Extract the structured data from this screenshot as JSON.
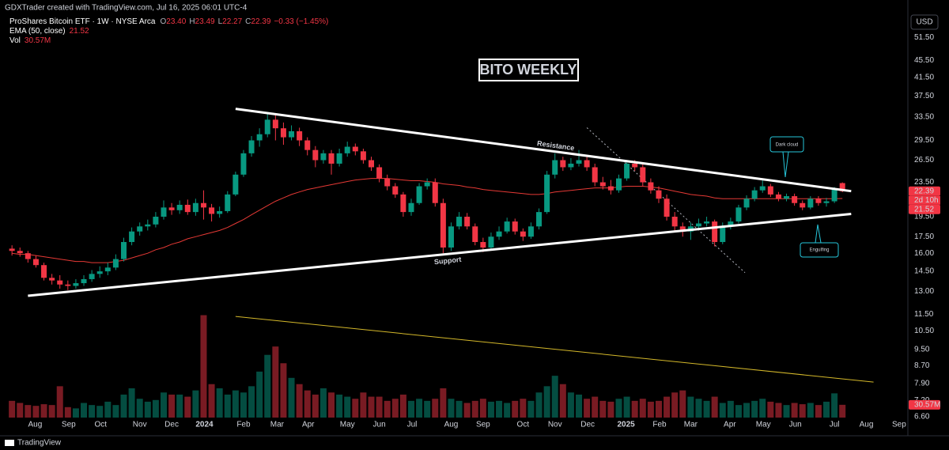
{
  "header": {
    "credit": "GDXTrader created with TradingView.com, Jul 16, 2025 06:01 UTC-4",
    "symbol": "ProShares Bitcoin ETF · 1W · NYSE Arca",
    "o_label": "O",
    "o": "23.40",
    "h_label": "H",
    "h": "23.49",
    "l_label": "L",
    "l": "22.27",
    "c_label": "C",
    "c": "22.39",
    "change": "−0.33 (−1.45%)",
    "ema_label": "EMA (50, close)",
    "ema_value": "21.52",
    "vol_label": "Vol",
    "vol_value": "30.57M",
    "currency": "USD",
    "logo": "TradingView"
  },
  "chart_data": {
    "type": "candlestick",
    "title": "BITO WEEKLY",
    "log_scale": true,
    "grid": false,
    "up_color": "#089981",
    "down_color": "#f23645",
    "ema_color": "#e53935",
    "trend_color": "#ffffff",
    "volume_trend_color": "#d4b82a",
    "xlim": [
      -1.5,
      112.2
    ],
    "ylim": [
      6.1,
      53.2
    ],
    "volume_ylim": [
      0,
      280
    ],
    "xticks": [
      {
        "value": 2.9,
        "label": "Aug"
      },
      {
        "value": 7.1,
        "label": "Sep"
      },
      {
        "value": 11.1,
        "label": "Oct"
      },
      {
        "value": 16.0,
        "label": "Nov"
      },
      {
        "value": 20.0,
        "label": "Dec"
      },
      {
        "value": 24.1,
        "label": "2024"
      },
      {
        "value": 29.0,
        "label": "Feb"
      },
      {
        "value": 33.2,
        "label": "Mar"
      },
      {
        "value": 37.1,
        "label": "Apr"
      },
      {
        "value": 42.0,
        "label": "May"
      },
      {
        "value": 46.0,
        "label": "Jun"
      },
      {
        "value": 50.1,
        "label": "Jul"
      },
      {
        "value": 55.0,
        "label": "Aug"
      },
      {
        "value": 59.0,
        "label": "Sep"
      },
      {
        "value": 64.0,
        "label": "Oct"
      },
      {
        "value": 68.0,
        "label": "Nov"
      },
      {
        "value": 72.1,
        "label": "Dec"
      },
      {
        "value": 76.9,
        "label": "2025"
      },
      {
        "value": 81.1,
        "label": "Feb"
      },
      {
        "value": 85.0,
        "label": "Mar"
      },
      {
        "value": 89.9,
        "label": "Apr"
      },
      {
        "value": 94.1,
        "label": "May"
      },
      {
        "value": 98.1,
        "label": "Jun"
      },
      {
        "value": 103.0,
        "label": "Jul"
      },
      {
        "value": 107.0,
        "label": "Aug"
      },
      {
        "value": 111.1,
        "label": "Sep"
      }
    ],
    "yticks": [
      {
        "value": 51.5,
        "label": "51.50"
      },
      {
        "value": 45.5,
        "label": "45.50"
      },
      {
        "value": 41.5,
        "label": "41.50"
      },
      {
        "value": 37.5,
        "label": "37.50"
      },
      {
        "value": 33.5,
        "label": "33.50"
      },
      {
        "value": 29.5,
        "label": "29.50"
      },
      {
        "value": 26.5,
        "label": "26.50"
      },
      {
        "value": 23.5,
        "label": "23.50"
      },
      {
        "value": 19.5,
        "label": "19.50"
      },
      {
        "value": 17.5,
        "label": "17.50"
      },
      {
        "value": 16,
        "label": "16.00"
      },
      {
        "value": 14.5,
        "label": "14.50"
      },
      {
        "value": 13,
        "label": "13.00"
      },
      {
        "value": 11.5,
        "label": "11.50"
      },
      {
        "value": 10.5,
        "label": "10.50"
      },
      {
        "value": 9.5,
        "label": "9.50"
      },
      {
        "value": 8.7,
        "label": "8.70"
      },
      {
        "value": 7.9,
        "label": "7.90"
      },
      {
        "value": 7.2,
        "label": "7.20"
      },
      {
        "value": 6.6,
        "label": "6.60"
      }
    ],
    "ohlc": [
      [
        16.4,
        16.7,
        15.8,
        16.2
      ],
      [
        16.2,
        16.5,
        15.7,
        16.0
      ],
      [
        16.0,
        16.2,
        15.2,
        15.5
      ],
      [
        15.5,
        15.8,
        14.8,
        15.0
      ],
      [
        15.0,
        15.2,
        13.8,
        14.0
      ],
      [
        14.0,
        14.3,
        13.5,
        13.8
      ],
      [
        13.8,
        14.2,
        13.2,
        13.5
      ],
      [
        13.5,
        13.8,
        13.1,
        13.4
      ],
      [
        13.4,
        13.9,
        13.2,
        13.6
      ],
      [
        13.6,
        14.2,
        13.4,
        13.9
      ],
      [
        13.9,
        14.6,
        13.7,
        14.3
      ],
      [
        14.3,
        14.9,
        14.0,
        14.5
      ],
      [
        14.5,
        15.2,
        14.2,
        14.8
      ],
      [
        14.8,
        15.9,
        14.6,
        15.5
      ],
      [
        15.5,
        17.4,
        15.3,
        17.0
      ],
      [
        17.0,
        18.4,
        16.7,
        18.0
      ],
      [
        18.0,
        18.9,
        17.6,
        18.5
      ],
      [
        18.5,
        19.2,
        18.1,
        18.7
      ],
      [
        18.7,
        20.0,
        18.4,
        19.5
      ],
      [
        19.5,
        21.3,
        19.2,
        20.5
      ],
      [
        20.5,
        21.0,
        19.7,
        20.2
      ],
      [
        20.2,
        21.3,
        19.8,
        20.8
      ],
      [
        20.8,
        21.4,
        19.7,
        20.0
      ],
      [
        20.0,
        21.5,
        19.6,
        21.0
      ],
      [
        21.0,
        22.5,
        19.2,
        20.5
      ],
      [
        20.5,
        20.9,
        19.0,
        19.8
      ],
      [
        19.8,
        20.6,
        19.4,
        20.1
      ],
      [
        20.1,
        22.4,
        19.9,
        22.0
      ],
      [
        22.0,
        24.9,
        21.8,
        24.5
      ],
      [
        24.5,
        28.0,
        24.2,
        27.5
      ],
      [
        27.5,
        30.2,
        27.0,
        29.5
      ],
      [
        29.5,
        31.5,
        28.5,
        30.5
      ],
      [
        30.5,
        34.0,
        30.0,
        33.0
      ],
      [
        33.0,
        33.8,
        29.5,
        31.5
      ],
      [
        31.5,
        32.5,
        28.8,
        30.0
      ],
      [
        30.0,
        32.0,
        29.5,
        31.0
      ],
      [
        31.0,
        31.6,
        28.6,
        29.5
      ],
      [
        29.5,
        30.0,
        27.2,
        28.0
      ],
      [
        28.0,
        28.6,
        25.5,
        26.5
      ],
      [
        26.5,
        28.0,
        26.0,
        27.5
      ],
      [
        27.5,
        28.0,
        24.5,
        26.0
      ],
      [
        26.0,
        28.2,
        25.6,
        27.5
      ],
      [
        27.5,
        29.3,
        27.0,
        28.5
      ],
      [
        28.5,
        29.0,
        27.2,
        27.8
      ],
      [
        27.8,
        28.2,
        26.0,
        26.5
      ],
      [
        26.5,
        27.0,
        25.0,
        25.5
      ],
      [
        25.5,
        25.9,
        23.5,
        24.0
      ],
      [
        24.0,
        24.5,
        22.5,
        23.0
      ],
      [
        23.0,
        23.4,
        21.6,
        22.0
      ],
      [
        22.0,
        22.3,
        19.5,
        20.0
      ],
      [
        20.0,
        21.5,
        19.6,
        21.0
      ],
      [
        21.0,
        23.4,
        20.8,
        23.0
      ],
      [
        23.0,
        24.0,
        22.6,
        23.5
      ],
      [
        23.5,
        24.0,
        20.6,
        21.0
      ],
      [
        21.0,
        21.5,
        16.0,
        16.5
      ],
      [
        16.5,
        18.9,
        16.2,
        18.5
      ],
      [
        18.5,
        20.0,
        18.2,
        19.5
      ],
      [
        19.5,
        19.9,
        18.2,
        18.5
      ],
      [
        18.5,
        18.8,
        16.7,
        17.0
      ],
      [
        17.0,
        17.4,
        16.1,
        16.5
      ],
      [
        16.5,
        17.9,
        16.3,
        17.5
      ],
      [
        17.5,
        18.5,
        17.2,
        18.0
      ],
      [
        18.0,
        19.4,
        17.8,
        19.0
      ],
      [
        19.0,
        19.3,
        17.7,
        18.0
      ],
      [
        18.0,
        18.3,
        17.1,
        17.5
      ],
      [
        17.5,
        18.9,
        17.3,
        18.5
      ],
      [
        18.5,
        20.4,
        18.2,
        20.0
      ],
      [
        20.0,
        25.0,
        19.8,
        24.5
      ],
      [
        24.5,
        27.5,
        24.0,
        26.5
      ],
      [
        26.5,
        27.0,
        25.0,
        25.5
      ],
      [
        25.5,
        26.8,
        25.1,
        26.0
      ],
      [
        26.0,
        28.0,
        25.6,
        26.5
      ],
      [
        26.5,
        27.0,
        25.0,
        25.5
      ],
      [
        25.5,
        26.0,
        23.0,
        23.5
      ],
      [
        23.5,
        24.2,
        22.6,
        23.0
      ],
      [
        23.0,
        23.8,
        22.0,
        22.5
      ],
      [
        22.5,
        24.5,
        22.2,
        24.0
      ],
      [
        24.0,
        26.5,
        23.7,
        26.0
      ],
      [
        26.0,
        26.5,
        25.0,
        25.5
      ],
      [
        25.5,
        25.9,
        23.0,
        23.5
      ],
      [
        23.5,
        24.0,
        22.1,
        22.5
      ],
      [
        22.5,
        23.0,
        21.0,
        21.5
      ],
      [
        21.5,
        22.0,
        19.1,
        19.5
      ],
      [
        19.5,
        20.0,
        18.1,
        18.5
      ],
      [
        18.5,
        18.9,
        17.5,
        18.0
      ],
      [
        18.0,
        18.9,
        17.2,
        18.5
      ],
      [
        18.5,
        19.3,
        18.2,
        18.8
      ],
      [
        18.8,
        19.5,
        18.5,
        19.0
      ],
      [
        19.0,
        19.2,
        16.6,
        17.0
      ],
      [
        17.0,
        18.9,
        16.8,
        18.5
      ],
      [
        18.5,
        19.4,
        18.2,
        19.0
      ],
      [
        19.0,
        20.8,
        18.8,
        20.5
      ],
      [
        20.5,
        21.9,
        20.2,
        21.5
      ],
      [
        21.5,
        22.9,
        21.2,
        22.5
      ],
      [
        22.5,
        23.8,
        22.2,
        23.0
      ],
      [
        23.0,
        23.3,
        21.7,
        22.0
      ],
      [
        22.0,
        22.3,
        21.2,
        21.5
      ],
      [
        21.5,
        22.1,
        21.2,
        21.8
      ],
      [
        21.8,
        22.1,
        20.7,
        21.0
      ],
      [
        21.0,
        21.3,
        20.2,
        20.5
      ],
      [
        20.5,
        21.8,
        20.3,
        21.5
      ],
      [
        21.5,
        21.8,
        20.7,
        21.0
      ],
      [
        21.0,
        21.6,
        20.6,
        21.2
      ],
      [
        21.2,
        22.9,
        21.0,
        22.72
      ],
      [
        23.4,
        23.49,
        22.27,
        22.39
      ]
    ],
    "volume": [
      40,
      35,
      30,
      28,
      32,
      30,
      75,
      25,
      22,
      35,
      30,
      28,
      38,
      30,
      55,
      70,
      45,
      38,
      42,
      60,
      55,
      55,
      50,
      65,
      245,
      80,
      70,
      55,
      65,
      60,
      75,
      110,
      150,
      170,
      130,
      95,
      80,
      65,
      55,
      70,
      60,
      55,
      50,
      45,
      60,
      50,
      50,
      40,
      45,
      55,
      40,
      45,
      40,
      45,
      70,
      45,
      40,
      35,
      40,
      45,
      38,
      40,
      35,
      40,
      45,
      40,
      60,
      75,
      100,
      80,
      60,
      55,
      45,
      50,
      40,
      38,
      45,
      50,
      40,
      45,
      38,
      40,
      50,
      60,
      65,
      50,
      45,
      40,
      50,
      35,
      40,
      30,
      35,
      40,
      45,
      38,
      35,
      30,
      35,
      32,
      35,
      30,
      38,
      58,
      30.57
    ],
    "ema": [
      16.0,
      15.9,
      15.9,
      15.8,
      15.7,
      15.6,
      15.5,
      15.4,
      15.3,
      15.3,
      15.2,
      15.2,
      15.2,
      15.3,
      15.4,
      15.6,
      15.8,
      16.0,
      16.3,
      16.5,
      16.8,
      17.0,
      17.3,
      17.5,
      17.7,
      17.9,
      18.1,
      18.4,
      18.8,
      19.2,
      19.7,
      20.2,
      20.7,
      21.2,
      21.6,
      22.0,
      22.3,
      22.6,
      22.8,
      23.0,
      23.2,
      23.4,
      23.6,
      23.8,
      23.9,
      24.0,
      24.0,
      24.0,
      23.9,
      23.8,
      23.7,
      23.7,
      23.6,
      23.5,
      23.3,
      23.2,
      23.1,
      22.9,
      22.8,
      22.6,
      22.5,
      22.4,
      22.3,
      22.2,
      22.1,
      22.0,
      22.0,
      22.1,
      22.3,
      22.4,
      22.5,
      22.6,
      22.7,
      22.8,
      22.8,
      22.8,
      22.9,
      23.0,
      23.0,
      23.0,
      22.9,
      22.8,
      22.6,
      22.4,
      22.2,
      22.0,
      21.9,
      21.8,
      21.6,
      21.5,
      21.5,
      21.5,
      21.5,
      21.5,
      21.5,
      21.5,
      21.5,
      21.5,
      21.5,
      21.5,
      21.5,
      21.5,
      21.5,
      21.5,
      21.52
    ],
    "resistance": {
      "label": "Resistance",
      "points": [
        [
          28.0,
          35.0
        ],
        [
          105.1,
          22.4
        ]
      ]
    },
    "support": {
      "label": "Support",
      "points": [
        [
          2.0,
          12.7
        ],
        [
          105.1,
          19.8
        ]
      ]
    },
    "channel": {
      "points": [
        [
          72.0,
          31.6
        ],
        [
          91.8,
          14.4
        ]
      ]
    },
    "volume_trend": {
      "points": [
        [
          28.0,
          242
        ],
        [
          107.9,
          85
        ]
      ]
    },
    "last_price": {
      "value": 22.39,
      "label": "22.39"
    },
    "countdown": "2d 10h",
    "ema_last": {
      "value": 21.52,
      "label": "21.52"
    },
    "volume_last": {
      "value": 30.57,
      "label": "30.57M"
    },
    "annotations": [
      "Dark cloud",
      "Engulfing"
    ]
  }
}
